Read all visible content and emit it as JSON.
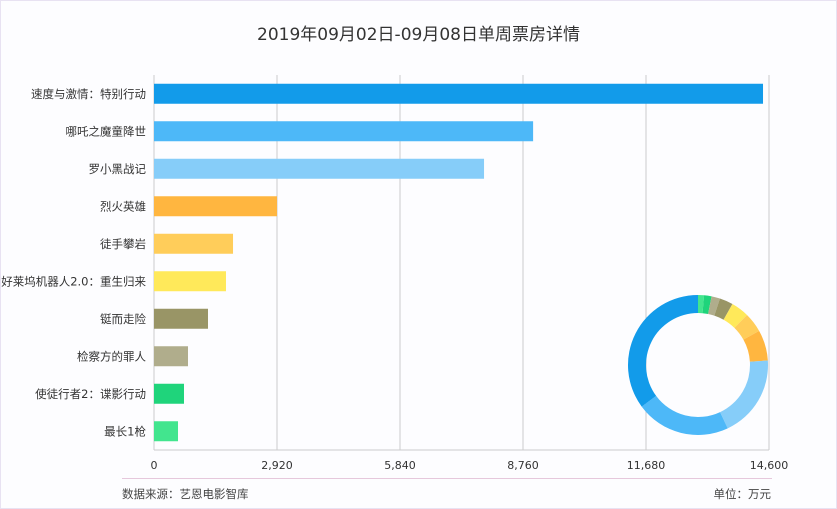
{
  "chart_data": {
    "type": "bar",
    "orientation": "horizontal",
    "title": "2019年09月02日-09月08日单周票房详情",
    "categories": [
      "速度与激情：特别行动",
      "哪吒之魔童降世",
      "罗小黑战记",
      "烈火英雄",
      "徒手攀岩",
      "好莱坞机器人2.0：重生归来",
      "铤而走险",
      "检察方的罪人",
      "使徒行者2：谍影行动",
      "最长1枪"
    ],
    "values": [
      14458,
      9000,
      7835,
      2920,
      1876,
      1709,
      1282,
      807,
      712,
      570
    ],
    "colors": [
      "#129bea",
      "#4db8f8",
      "#86cdf9",
      "#ffb640",
      "#ffcd5a",
      "#ffe95a",
      "#999566",
      "#b0ad8c",
      "#1fd47b",
      "#42e58e"
    ],
    "xlim": [
      0,
      14600
    ],
    "xticks": [
      "0",
      "2,920",
      "5,840",
      "8,760",
      "11,680",
      "14,600"
    ],
    "grid": true,
    "inset": {
      "type": "donut",
      "values_from": "values"
    }
  },
  "footer": {
    "source": "数据来源：艺恩电影智库",
    "unit": "单位：万元"
  }
}
